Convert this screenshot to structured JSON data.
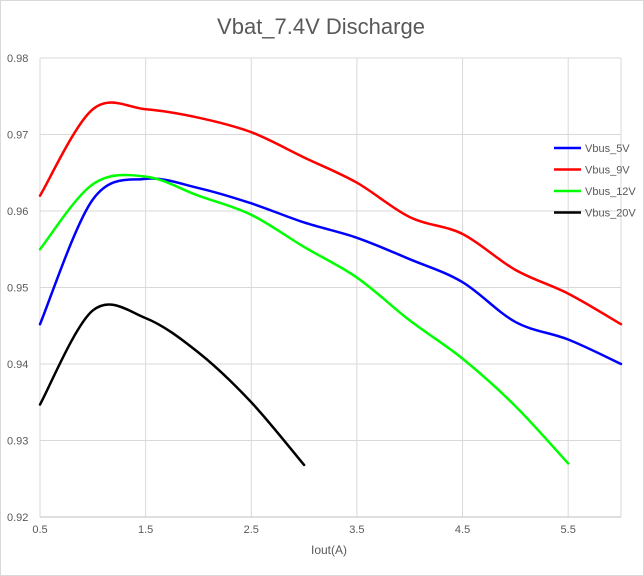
{
  "chart_data": {
    "type": "line",
    "title": "Vbat_7.4V Discharge",
    "xlabel": "Iout(A)",
    "ylabel": "",
    "xlim": [
      0.5,
      6.0
    ],
    "ylim": [
      0.92,
      0.98
    ],
    "x_ticks": [
      "0.5",
      "1.5",
      "2.5",
      "3.5",
      "4.5",
      "5.5"
    ],
    "x_tick_values": [
      0.5,
      1.5,
      2.5,
      3.5,
      4.5,
      5.5
    ],
    "y_ticks": [
      "0.92",
      "0.93",
      "0.94",
      "0.95",
      "0.96",
      "0.97",
      "0.98"
    ],
    "y_tick_values": [
      0.92,
      0.93,
      0.94,
      0.95,
      0.96,
      0.97,
      0.98
    ],
    "grid": "vertical and horizontal",
    "legend_position": "right",
    "smooth": true,
    "series": [
      {
        "name": "Vbus_5V",
        "color": "#0000ff",
        "x": [
          0.5,
          1.0,
          1.5,
          2.0,
          2.5,
          3.0,
          3.5,
          4.0,
          4.5,
          5.0,
          5.5,
          6.0
        ],
        "values": [
          0.9452,
          0.9615,
          0.9642,
          0.963,
          0.961,
          0.9585,
          0.9565,
          0.9537,
          0.9507,
          0.9455,
          0.9432,
          0.94
        ]
      },
      {
        "name": "Vbus_9V",
        "color": "#ff0000",
        "x": [
          0.5,
          1.0,
          1.5,
          2.0,
          2.5,
          3.0,
          3.5,
          4.0,
          4.5,
          5.0,
          5.5,
          6.0
        ],
        "values": [
          0.962,
          0.9733,
          0.9733,
          0.9722,
          0.9703,
          0.967,
          0.9637,
          0.9592,
          0.957,
          0.9523,
          0.9492,
          0.9452
        ]
      },
      {
        "name": "Vbus_12V",
        "color": "#00ff00",
        "x": [
          0.5,
          1.0,
          1.5,
          2.0,
          2.5,
          3.0,
          3.5,
          4.0,
          4.5,
          5.0,
          5.5
        ],
        "values": [
          0.955,
          0.9635,
          0.9645,
          0.962,
          0.9595,
          0.9553,
          0.9513,
          0.9457,
          0.9407,
          0.9345,
          0.927
        ]
      },
      {
        "name": "Vbus_20V",
        "color": "#000000",
        "x": [
          0.5,
          1.0,
          1.5,
          2.0,
          2.5,
          3.0
        ],
        "values": [
          0.9347,
          0.947,
          0.946,
          0.9415,
          0.935,
          0.9268
        ]
      }
    ]
  }
}
